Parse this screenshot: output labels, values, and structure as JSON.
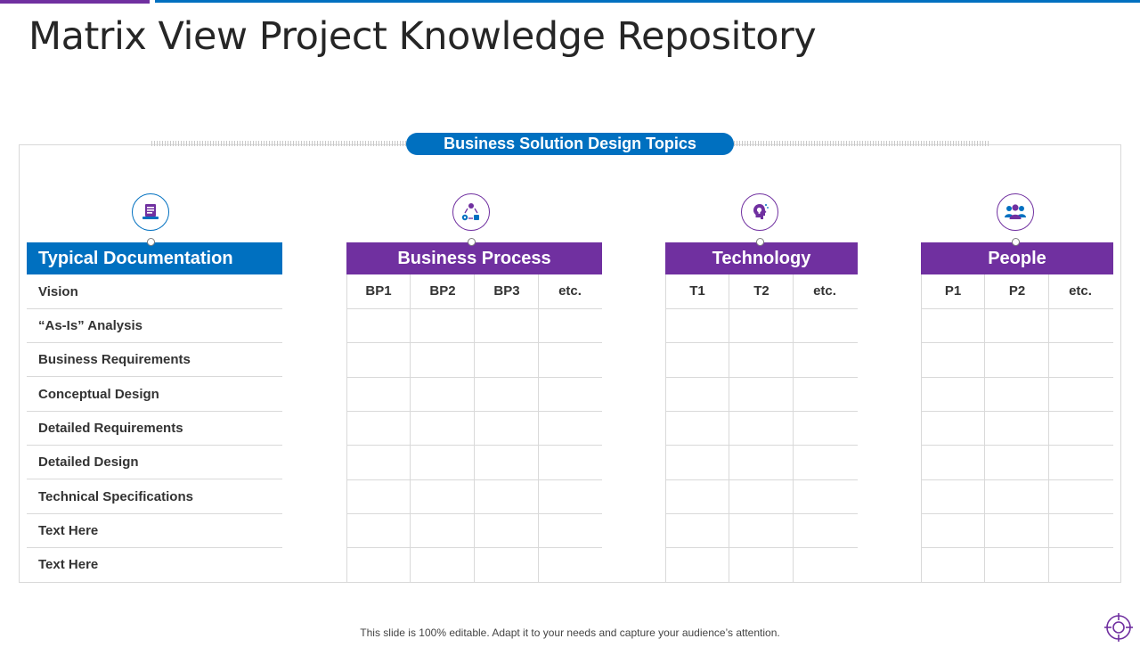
{
  "page": {
    "title": "Matrix View Project Knowledge Repository",
    "topic_banner": "Business Solution Design Topics",
    "footer": "This slide is 100% editable. Adapt it to your needs and capture your audience’s attention."
  },
  "colors": {
    "blue": "#0070c0",
    "purple": "#7030a0",
    "grid": "#d9d9d9"
  },
  "documentation": {
    "header": "Typical Documentation",
    "icon": "laptop-document-icon",
    "rows": [
      "Vision",
      "“As-Is” Analysis",
      "Business Requirements",
      "Conceptual Design",
      "Detailed Requirements",
      "Detailed Design",
      "Technical Specifications",
      "Text Here",
      "Text Here"
    ]
  },
  "sections": [
    {
      "header": "Business Process",
      "icon": "process-cycle-icon",
      "columns": [
        "BP1",
        "BP2",
        "BP3",
        "etc."
      ]
    },
    {
      "header": "Technology",
      "icon": "lightbulb-head-icon",
      "columns": [
        "T1",
        "T2",
        "etc."
      ]
    },
    {
      "header": "People",
      "icon": "people-group-icon",
      "columns": [
        "P1",
        "P2",
        "etc."
      ]
    }
  ]
}
